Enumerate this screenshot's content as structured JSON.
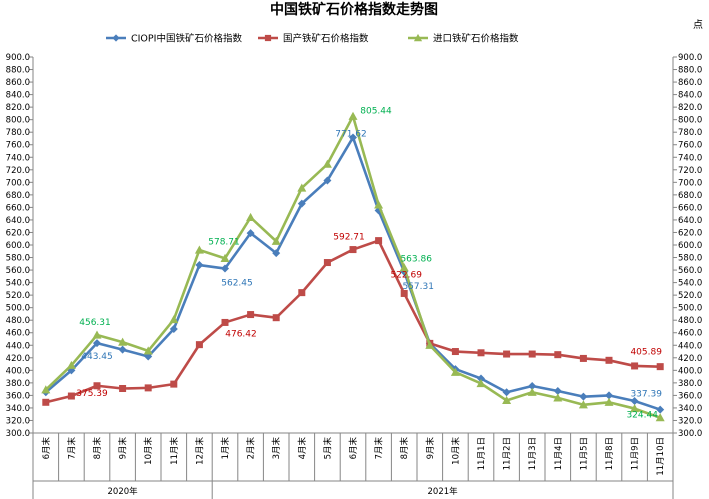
{
  "chart_data": {
    "type": "line",
    "title": "中国铁矿石价格指数走势图",
    "unit_label": "点",
    "ylim": [
      300,
      900
    ],
    "y_step": 20,
    "categories": [
      "6月末",
      "7月末",
      "8月末",
      "9月末",
      "10月末",
      "11月末",
      "12月末",
      "1月末",
      "2月末",
      "3月末",
      "4月末",
      "5月末",
      "6月末",
      "7月末",
      "8月末",
      "9月末",
      "10月末",
      "11月1日",
      "11月2日",
      "11月3日",
      "11月4日",
      "11月5日",
      "11月8日",
      "11月9日",
      "11月10日"
    ],
    "year_groups": [
      {
        "label": "2020年",
        "start": 0,
        "end": 6
      },
      {
        "label": "2021年",
        "start": 7,
        "end": 24
      }
    ],
    "series": [
      {
        "name": "CIOPI中国铁矿石价格指数",
        "color": "#4a7ebb",
        "marker": "diamond",
        "values": [
          365,
          400,
          443.45,
          433,
          422,
          466,
          568,
          562.45,
          619,
          587,
          666,
          703,
          771.62,
          655,
          557.31,
          443,
          402,
          387,
          365,
          375,
          367,
          358,
          360,
          351,
          337.39
        ]
      },
      {
        "name": "国产铁矿石价格指数",
        "color": "#be4b48",
        "marker": "square",
        "values": [
          349,
          359,
          375.39,
          371,
          372,
          378,
          441,
          476.42,
          489,
          484,
          524,
          572,
          592.71,
          607,
          522.69,
          443,
          430,
          428,
          426,
          426,
          425,
          419,
          416,
          407,
          405.89
        ]
      },
      {
        "name": "进口铁矿石价格指数",
        "color": "#98b954",
        "marker": "triangle",
        "values": [
          369,
          408,
          456.31,
          445,
          431,
          481,
          592,
          578.71,
          644,
          606,
          691,
          729,
          805.44,
          664,
          563.86,
          440,
          397,
          379,
          352,
          365,
          356,
          345,
          349,
          339,
          324.44
        ]
      }
    ],
    "annotations": [
      {
        "series": 0,
        "index": 2,
        "label": "443.45"
      },
      {
        "series": 0,
        "index": 7,
        "label": "562.45"
      },
      {
        "series": 0,
        "index": 12,
        "label": "771.62"
      },
      {
        "series": 0,
        "index": 14,
        "label": "557.31"
      },
      {
        "series": 0,
        "index": 24,
        "label": "337.39"
      },
      {
        "series": 1,
        "index": 2,
        "label": "375.39"
      },
      {
        "series": 1,
        "index": 7,
        "label": "476.42"
      },
      {
        "series": 1,
        "index": 12,
        "label": "592.71"
      },
      {
        "series": 1,
        "index": 14,
        "label": "522.69"
      },
      {
        "series": 1,
        "index": 24,
        "label": "405.89"
      },
      {
        "series": 2,
        "index": 2,
        "label": "456.31"
      },
      {
        "series": 2,
        "index": 7,
        "label": "578.71"
      },
      {
        "series": 2,
        "index": 12,
        "label": "805.44"
      },
      {
        "series": 2,
        "index": 14,
        "label": "563.86"
      },
      {
        "series": 2,
        "index": 24,
        "label": "324.44"
      }
    ],
    "legend_position": "top",
    "grid": false
  }
}
